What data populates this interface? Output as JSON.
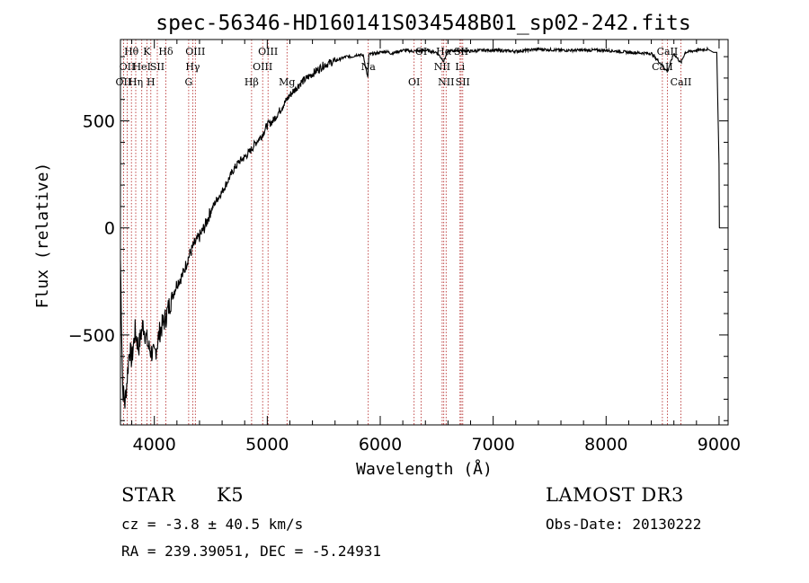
{
  "chart_data": {
    "type": "line",
    "title": "spec-56346-HD160141S034548B01_sp02-242.fits",
    "xlabel": "Wavelength (Å)",
    "ylabel": "Flux (relative)",
    "xlim": [
      3700,
      9080
    ],
    "ylim": [
      -920,
      880
    ],
    "xticks": [
      4000,
      5000,
      6000,
      7000,
      8000,
      9000
    ],
    "yticks": [
      -500,
      0,
      500
    ],
    "series": [
      {
        "x": [
          3700,
          3720,
          3740,
          3760,
          3780,
          3800,
          3830,
          3860,
          3900,
          3950,
          4000,
          4050,
          4100,
          4150,
          4200,
          4250,
          4300,
          4350,
          4400,
          4450,
          4500,
          4550,
          4600,
          4650,
          4700,
          4750,
          4800,
          4850,
          4900,
          4950,
          5000,
          5050,
          5100,
          5150,
          5200,
          5250,
          5300,
          5350,
          5400,
          5450,
          5500,
          5550,
          5600,
          5650,
          5700,
          5750,
          5800,
          5850,
          5890,
          5895,
          5900,
          5950,
          6000,
          6050,
          6100,
          6200,
          6300,
          6400,
          6500,
          6563,
          6600,
          6700,
          6800,
          6900,
          7000,
          7200,
          7400,
          7600,
          7800,
          8000,
          8200,
          8400,
          8498,
          8542,
          8600,
          8662,
          8700,
          8800,
          8900,
          8950,
          8980,
          9000,
          9003
        ],
        "y": [
          -150,
          -750,
          -820,
          -700,
          -560,
          -620,
          -480,
          -560,
          -450,
          -560,
          -600,
          -480,
          -420,
          -330,
          -260,
          -220,
          -140,
          -80,
          -40,
          10,
          80,
          130,
          170,
          220,
          270,
          310,
          330,
          360,
          400,
          430,
          480,
          500,
          540,
          580,
          620,
          650,
          680,
          700,
          720,
          740,
          760,
          770,
          780,
          790,
          800,
          800,
          810,
          805,
          700,
          760,
          810,
          815,
          820,
          825,
          815,
          830,
          825,
          830,
          820,
          780,
          825,
          830,
          825,
          830,
          830,
          825,
          835,
          830,
          830,
          830,
          820,
          815,
          760,
          730,
          815,
          770,
          820,
          830,
          835,
          820,
          820,
          300,
          0
        ]
      }
    ],
    "spectral_lines": [
      {
        "w": 3727,
        "label": "OII",
        "row": 2
      },
      {
        "w": 3760,
        "label": "OII",
        "row": 1
      },
      {
        "w": 3797,
        "label": "Hθ",
        "row": 0
      },
      {
        "w": 3835,
        "label": "Hη",
        "row": 2
      },
      {
        "w": 3889,
        "label": "HeI",
        "row": 1
      },
      {
        "w": 3934,
        "label": "K",
        "row": 0
      },
      {
        "w": 3969,
        "label": "H",
        "row": 2
      },
      {
        "w": 4026,
        "label": "SII",
        "row": 1
      },
      {
        "w": 4102,
        "label": "Hδ",
        "row": 0
      },
      {
        "w": 4304,
        "label": "G",
        "row": 2
      },
      {
        "w": 4340,
        "label": "Hγ",
        "row": 1
      },
      {
        "w": 4363,
        "label": "OIII",
        "row": 0
      },
      {
        "w": 4861,
        "label": "Hβ",
        "row": 2
      },
      {
        "w": 4959,
        "label": "OIII",
        "row": 1
      },
      {
        "w": 5007,
        "label": "OIII",
        "row": 0
      },
      {
        "w": 5175,
        "label": "Mg",
        "row": 2
      },
      {
        "w": 5894,
        "label": "Na",
        "row": 1
      },
      {
        "w": 6300,
        "label": "OI",
        "row": 2
      },
      {
        "w": 6363,
        "label": "OI",
        "row": 0
      },
      {
        "w": 6548,
        "label": "NII",
        "row": 1
      },
      {
        "w": 6563,
        "label": "Hα",
        "row": 0
      },
      {
        "w": 6583,
        "label": "NII",
        "row": 2
      },
      {
        "w": 6707,
        "label": "Li",
        "row": 1
      },
      {
        "w": 6716,
        "label": "SII",
        "row": 0
      },
      {
        "w": 6731,
        "label": "SII",
        "row": 2
      },
      {
        "w": 8498,
        "label": "CaII",
        "row": 1
      },
      {
        "w": 8542,
        "label": "CaII",
        "row": 0
      },
      {
        "w": 8662,
        "label": "CaII",
        "row": 2
      }
    ],
    "line_color": "#b22222",
    "grid": false
  },
  "info": {
    "object_type": "STAR",
    "subclass": "K5",
    "redshift": "cz = -3.8 ± 40.5 km/s",
    "coords": "RA = 239.39051, DEC =  -5.24931",
    "survey": "LAMOST DR3",
    "obs_date": "Obs-Date: 20130222"
  }
}
